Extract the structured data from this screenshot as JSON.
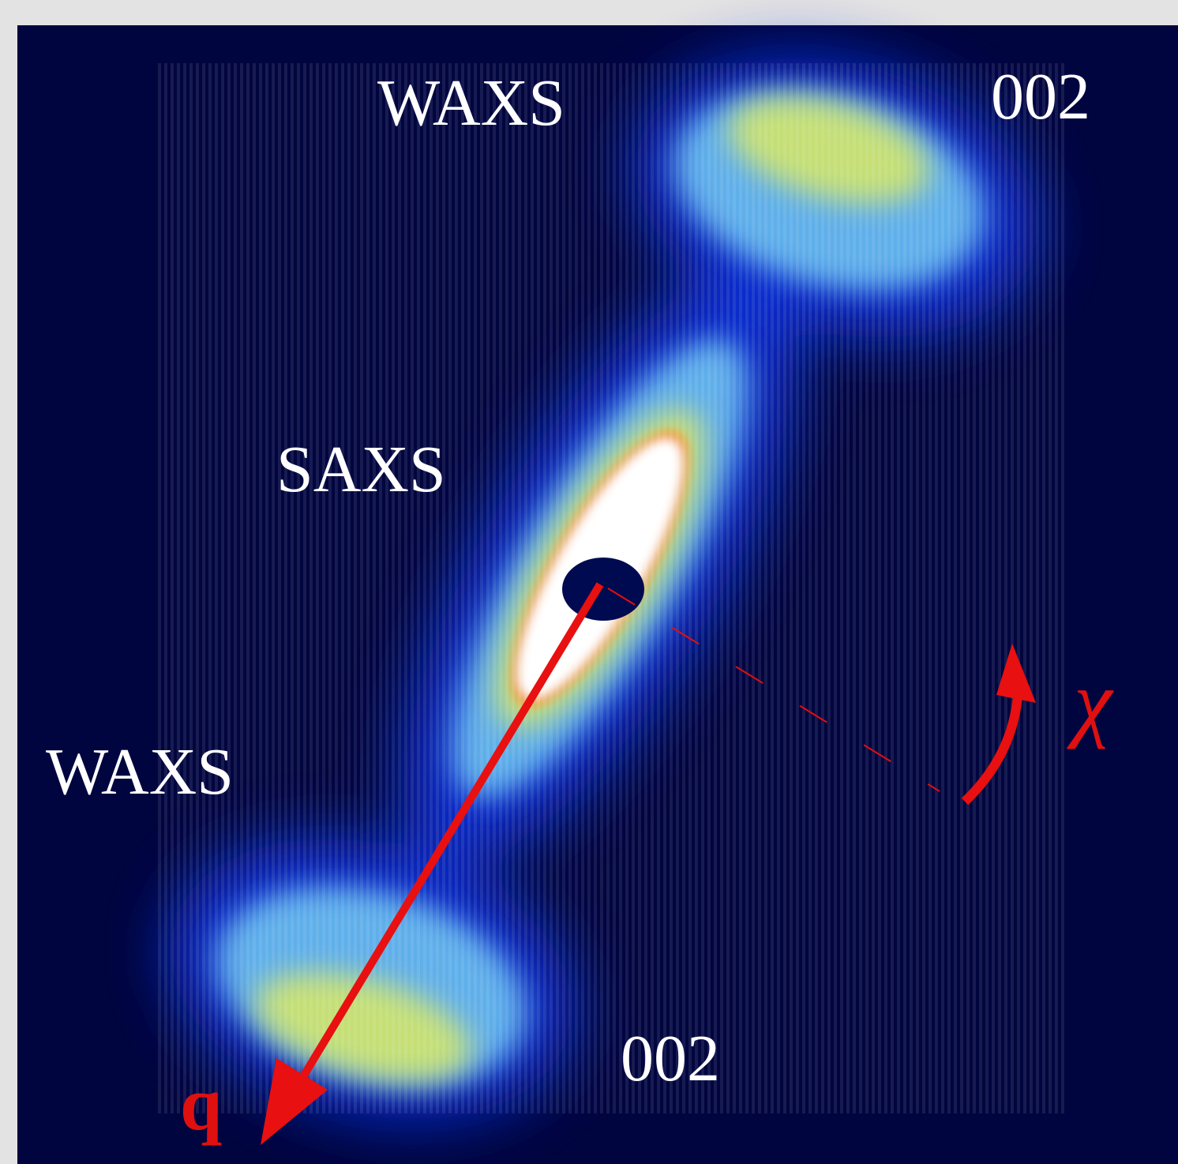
{
  "figure": {
    "labels": {
      "waxs_top": "WAXS",
      "peak_top": "002",
      "saxs": "SAXS",
      "waxs_left": "WAXS",
      "peak_bottom": "002",
      "q_axis": "q",
      "chi_axis": "χ"
    }
  }
}
